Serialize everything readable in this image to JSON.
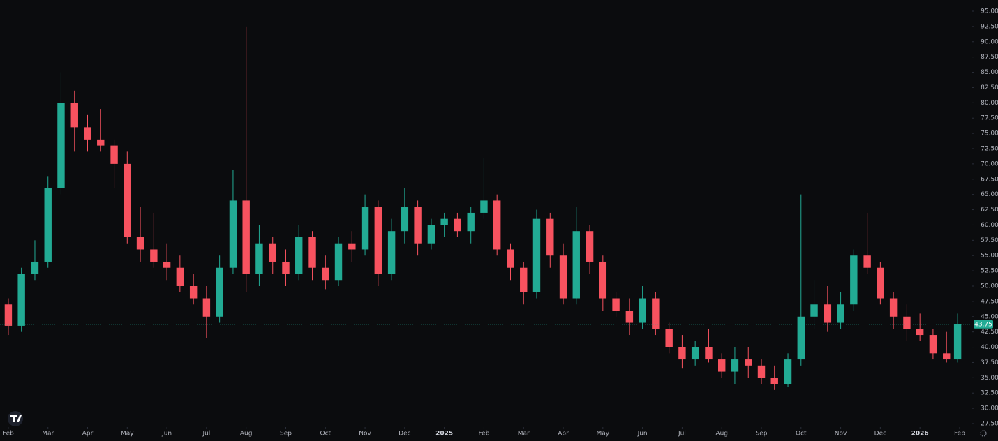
{
  "chart_data": {
    "type": "candlestick",
    "up_color": "#22ab94",
    "down_color": "#f7525f",
    "price_line_color": "#22ab94",
    "last_price": 43.75,
    "xlim": [
      -0.21,
      24.3
    ],
    "xticks": [
      {
        "value": 0,
        "label": "Feb"
      },
      {
        "value": 1,
        "label": "Mar"
      },
      {
        "value": 2,
        "label": "Apr"
      },
      {
        "value": 3,
        "label": "May"
      },
      {
        "value": 4,
        "label": "Jun"
      },
      {
        "value": 5,
        "label": "Jul"
      },
      {
        "value": 6,
        "label": "Aug"
      },
      {
        "value": 7,
        "label": "Sep"
      },
      {
        "value": 8,
        "label": "Oct"
      },
      {
        "value": 9,
        "label": "Nov"
      },
      {
        "value": 10,
        "label": "Dec"
      },
      {
        "value": 11,
        "label": "2025"
      },
      {
        "value": 12,
        "label": "Feb"
      },
      {
        "value": 13,
        "label": "Mar"
      },
      {
        "value": 14,
        "label": "Apr"
      },
      {
        "value": 15,
        "label": "May"
      },
      {
        "value": 16,
        "label": "Jun"
      },
      {
        "value": 17,
        "label": "Jul"
      },
      {
        "value": 18,
        "label": "Aug"
      },
      {
        "value": 19,
        "label": "Sep"
      },
      {
        "value": 20,
        "label": "Oct"
      },
      {
        "value": 21,
        "label": "Nov"
      },
      {
        "value": 22,
        "label": "Dec"
      },
      {
        "value": 23,
        "label": "2026"
      },
      {
        "value": 24,
        "label": "Feb"
      }
    ],
    "ylim": [
      27.5,
      95
    ],
    "yticks": [
      {
        "value": 27.5,
        "label": "27.50"
      },
      {
        "value": 30,
        "label": "30.00"
      },
      {
        "value": 32.5,
        "label": "32.50"
      },
      {
        "value": 35,
        "label": "35.00"
      },
      {
        "value": 37.5,
        "label": "37.50"
      },
      {
        "value": 40,
        "label": "40.00"
      },
      {
        "value": 42.5,
        "label": "42.50"
      },
      {
        "value": 45,
        "label": "45.00"
      },
      {
        "value": 47.5,
        "label": "47.50"
      },
      {
        "value": 50,
        "label": "50.00"
      },
      {
        "value": 52.5,
        "label": "52.50"
      },
      {
        "value": 55,
        "label": "55.00"
      },
      {
        "value": 57.5,
        "label": "57.50"
      },
      {
        "value": 60,
        "label": "60.00"
      },
      {
        "value": 62.5,
        "label": "62.50"
      },
      {
        "value": 65,
        "label": "65.00"
      },
      {
        "value": 67.5,
        "label": "67.50"
      },
      {
        "value": 70,
        "label": "70.00"
      },
      {
        "value": 72.5,
        "label": "72.50"
      },
      {
        "value": 75,
        "label": "75.00"
      },
      {
        "value": 77.5,
        "label": "77.50"
      },
      {
        "value": 80,
        "label": "80.00"
      },
      {
        "value": 82.5,
        "label": "82.50"
      },
      {
        "value": 85,
        "label": "85.00"
      },
      {
        "value": 87.5,
        "label": "87.50"
      },
      {
        "value": 90,
        "label": "90.00"
      },
      {
        "value": 92.5,
        "label": "92.50"
      },
      {
        "value": 95,
        "label": "95.00"
      }
    ],
    "x": [
      0,
      0.33,
      0.67,
      1,
      1.33,
      1.67,
      2,
      2.33,
      2.67,
      3,
      3.33,
      3.67,
      4,
      4.33,
      4.67,
      5,
      5.33,
      5.67,
      6,
      6.33,
      6.67,
      7,
      7.33,
      7.67,
      8,
      8.33,
      8.67,
      9,
      9.33,
      9.67,
      10,
      10.33,
      10.67,
      11,
      11.33,
      11.67,
      12,
      12.33,
      12.67,
      13,
      13.33,
      13.67,
      14,
      14.33,
      14.67,
      15,
      15.33,
      15.67,
      16,
      16.33,
      16.67,
      17,
      17.33,
      17.67,
      18,
      18.33,
      18.67,
      19,
      19.33,
      19.67,
      20,
      20.33,
      20.67,
      21,
      21.33,
      21.67,
      22,
      22.33,
      22.67,
      23,
      23.33,
      23.67,
      23.95
    ],
    "open": [
      47,
      43.5,
      52,
      54,
      66,
      80,
      76,
      74,
      73,
      70,
      58,
      56,
      54,
      53,
      50,
      48,
      45,
      53,
      64,
      52,
      57,
      54,
      52,
      58,
      53,
      51,
      57,
      56,
      63,
      52,
      59,
      63,
      57,
      60,
      61,
      59,
      62,
      64,
      56,
      53,
      49,
      61,
      55,
      48,
      59,
      54,
      48,
      46,
      44,
      48,
      43,
      40,
      38,
      40,
      38,
      36,
      38,
      37,
      35,
      34,
      38,
      45,
      47,
      44,
      47,
      55,
      53,
      48,
      45,
      43,
      42,
      39,
      38
    ],
    "high": [
      48,
      53,
      57.5,
      68,
      85,
      82,
      78,
      79,
      74,
      72,
      63,
      62,
      57,
      55,
      52,
      50,
      55,
      69,
      92.5,
      60,
      58,
      56,
      60,
      59,
      55,
      58,
      59,
      65,
      64,
      61,
      66,
      64,
      61,
      62,
      62,
      63,
      71,
      65,
      57,
      54,
      62.5,
      62,
      57,
      63,
      60,
      55,
      49,
      48,
      50,
      49,
      44,
      42,
      41,
      43,
      39,
      40,
      40,
      38,
      37,
      39,
      65,
      51,
      50,
      49,
      56,
      62,
      54,
      49,
      47,
      45.5,
      43,
      42.5,
      45.5
    ],
    "low": [
      42,
      42.5,
      51,
      53,
      65,
      72,
      72,
      72,
      66,
      57,
      54,
      53,
      51,
      49,
      47,
      41.5,
      44,
      52,
      49,
      50,
      52,
      50,
      51,
      51,
      49.5,
      50,
      54,
      55,
      50,
      51,
      57,
      55,
      56,
      58,
      58,
      57,
      61,
      55,
      51,
      47,
      48,
      53,
      47,
      47,
      52,
      46,
      45,
      42,
      43,
      42,
      39,
      36.5,
      37,
      37.5,
      35,
      34,
      35,
      34,
      33,
      33.5,
      37,
      43,
      42.5,
      43,
      46,
      52,
      47,
      43,
      41,
      41,
      38,
      37.5,
      37.5
    ],
    "close": [
      43.5,
      52,
      54,
      66,
      80,
      76,
      74,
      73,
      70,
      58,
      56,
      54,
      53,
      50,
      48,
      45,
      53,
      64,
      52,
      57,
      54,
      52,
      58,
      53,
      51,
      57,
      56,
      63,
      52,
      59,
      63,
      57,
      60,
      61,
      59,
      62,
      64,
      56,
      53,
      49,
      61,
      55,
      48,
      59,
      54,
      48,
      46,
      44,
      48,
      43,
      40,
      38,
      40,
      38,
      36,
      38,
      37,
      35,
      34,
      38,
      45,
      47,
      44,
      47,
      55,
      53,
      48,
      45,
      43,
      42,
      39,
      38,
      43.75
    ]
  }
}
